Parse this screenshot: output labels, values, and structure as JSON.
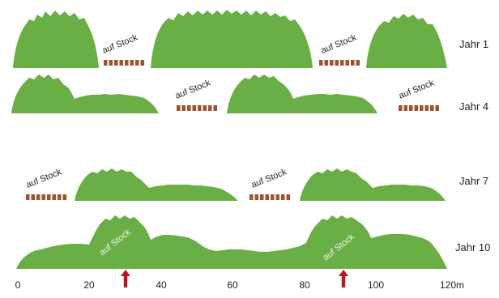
{
  "stock_label": "auf Stock",
  "colors": {
    "hedge": "#6aae46",
    "stump": "#a0522d",
    "arrow": "#c0141c"
  },
  "rows": [
    {
      "id": "r1",
      "label": "Jahr 1"
    },
    {
      "id": "r4",
      "label": "Jahr 4"
    },
    {
      "id": "r7",
      "label": "Jahr 7"
    },
    {
      "id": "r10",
      "label": "Jahr 10"
    }
  ],
  "axis": {
    "ticks": [
      "0",
      "20",
      "40",
      "60",
      "80",
      "100",
      "120m"
    ]
  },
  "markers": [
    "arrow-up-icon",
    "arrow-up-icon"
  ]
}
